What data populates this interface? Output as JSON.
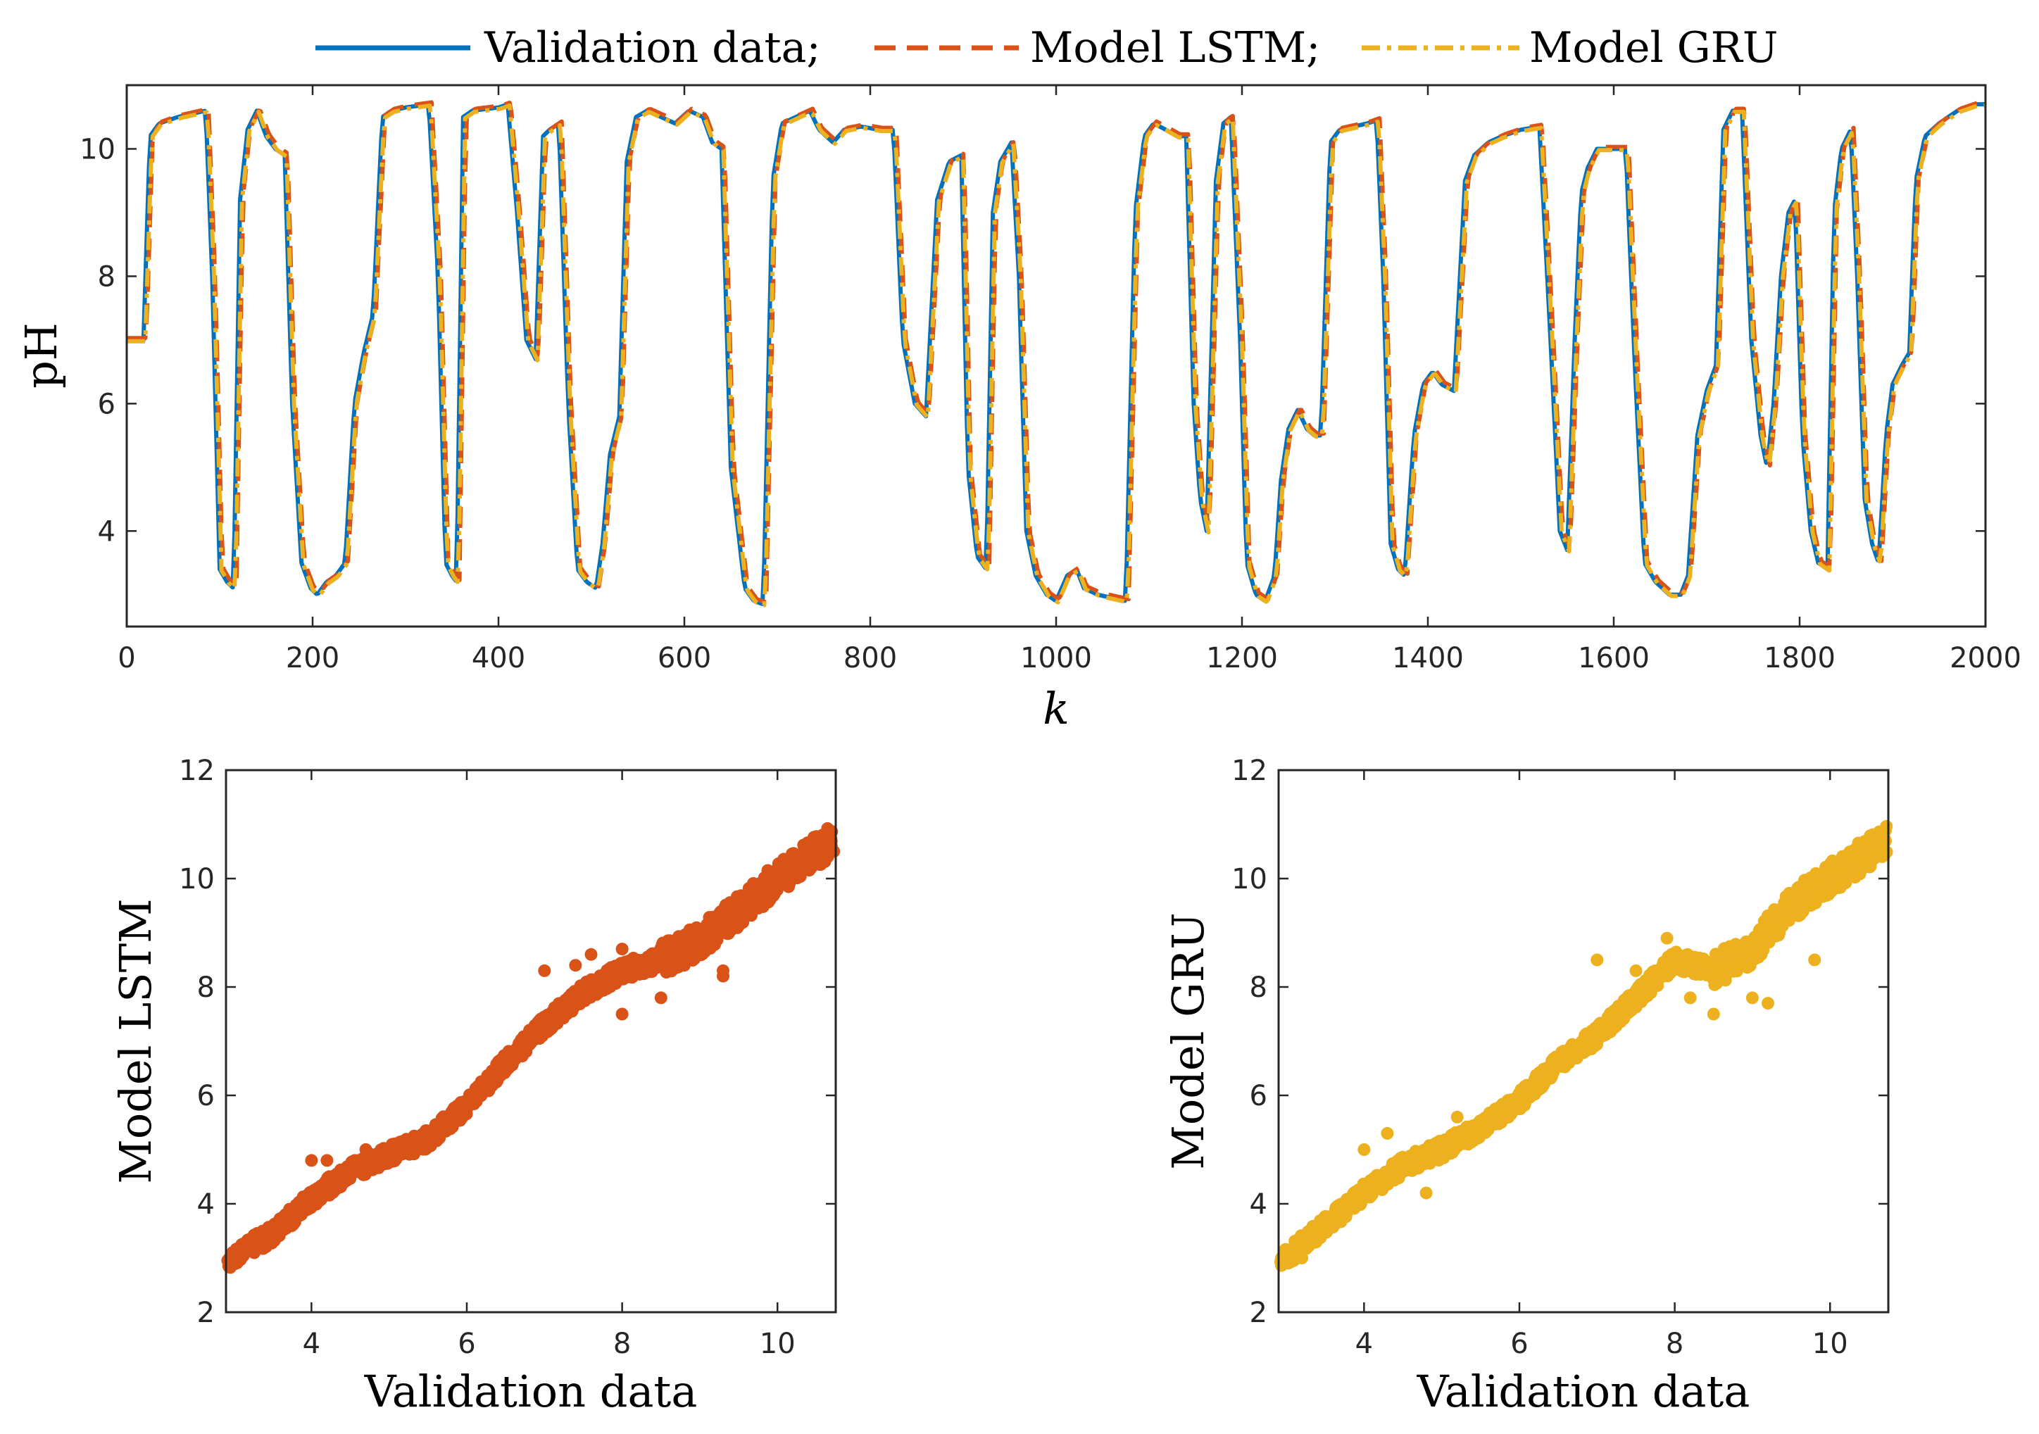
{
  "colors": {
    "validation": "#0072BD",
    "lstm": "#D95319",
    "gru": "#EDB120",
    "axis": "#262626",
    "background": "#FFFFFF"
  },
  "legend": {
    "validation_label": "Validation data;",
    "lstm_label": "Model LSTM;",
    "gru_label": "Model GRU"
  },
  "chart_data": [
    {
      "id": "time-series",
      "type": "line",
      "title": "",
      "xlabel": "k",
      "ylabel": "pH",
      "xlim": [
        0,
        2000
      ],
      "ylim": [
        2.5,
        11
      ],
      "xticks": [
        0,
        200,
        400,
        600,
        800,
        1000,
        1200,
        1400,
        1600,
        1800,
        2000
      ],
      "yticks": [
        4,
        6,
        8,
        10
      ],
      "grid": false,
      "legend_position": "top-center-outside",
      "validation_keypoints": [
        [
          0,
          7.0
        ],
        [
          18,
          7.0
        ],
        [
          25,
          10.2
        ],
        [
          35,
          10.4
        ],
        [
          55,
          10.5
        ],
        [
          70,
          10.55
        ],
        [
          85,
          10.6
        ],
        [
          92,
          8.0
        ],
        [
          100,
          3.4
        ],
        [
          108,
          3.2
        ],
        [
          115,
          3.1
        ],
        [
          122,
          9.2
        ],
        [
          130,
          10.3
        ],
        [
          140,
          10.6
        ],
        [
          150,
          10.2
        ],
        [
          160,
          10.0
        ],
        [
          170,
          9.9
        ],
        [
          178,
          6.0
        ],
        [
          188,
          3.5
        ],
        [
          198,
          3.1
        ],
        [
          205,
          3.0
        ],
        [
          215,
          3.2
        ],
        [
          225,
          3.3
        ],
        [
          235,
          3.5
        ],
        [
          245,
          6.0
        ],
        [
          255,
          6.8
        ],
        [
          265,
          7.4
        ],
        [
          275,
          10.5
        ],
        [
          285,
          10.6
        ],
        [
          300,
          10.65
        ],
        [
          325,
          10.7
        ],
        [
          335,
          8.0
        ],
        [
          343,
          3.5
        ],
        [
          350,
          3.3
        ],
        [
          355,
          3.2
        ],
        [
          362,
          10.5
        ],
        [
          372,
          10.6
        ],
        [
          400,
          10.65
        ],
        [
          410,
          10.7
        ],
        [
          420,
          9.0
        ],
        [
          430,
          7.0
        ],
        [
          440,
          6.7
        ],
        [
          448,
          10.2
        ],
        [
          455,
          10.3
        ],
        [
          465,
          10.4
        ],
        [
          475,
          6.0
        ],
        [
          485,
          3.4
        ],
        [
          495,
          3.2
        ],
        [
          505,
          3.1
        ],
        [
          512,
          3.8
        ],
        [
          520,
          5.2
        ],
        [
          530,
          5.8
        ],
        [
          538,
          9.8
        ],
        [
          548,
          10.5
        ],
        [
          560,
          10.6
        ],
        [
          575,
          10.5
        ],
        [
          590,
          10.4
        ],
        [
          605,
          10.6
        ],
        [
          620,
          10.5
        ],
        [
          630,
          10.1
        ],
        [
          640,
          10.0
        ],
        [
          650,
          5.0
        ],
        [
          665,
          3.1
        ],
        [
          675,
          2.9
        ],
        [
          685,
          2.85
        ],
        [
          695,
          9.5
        ],
        [
          705,
          10.4
        ],
        [
          720,
          10.5
        ],
        [
          735,
          10.6
        ],
        [
          745,
          10.3
        ],
        [
          760,
          10.1
        ],
        [
          772,
          10.3
        ],
        [
          790,
          10.35
        ],
        [
          810,
          10.3
        ],
        [
          825,
          10.3
        ],
        [
          835,
          7.0
        ],
        [
          848,
          6.0
        ],
        [
          860,
          5.8
        ],
        [
          872,
          9.2
        ],
        [
          885,
          9.8
        ],
        [
          898,
          9.9
        ],
        [
          905,
          5.0
        ],
        [
          915,
          3.6
        ],
        [
          925,
          3.4
        ],
        [
          932,
          9.0
        ],
        [
          940,
          9.8
        ],
        [
          952,
          10.1
        ],
        [
          960,
          8.0
        ],
        [
          968,
          4.0
        ],
        [
          978,
          3.3
        ],
        [
          990,
          3.0
        ],
        [
          1000,
          2.9
        ],
        [
          1012,
          3.3
        ],
        [
          1022,
          3.4
        ],
        [
          1030,
          3.1
        ],
        [
          1045,
          3.0
        ],
        [
          1060,
          2.95
        ],
        [
          1075,
          2.9
        ],
        [
          1085,
          9.0
        ],
        [
          1095,
          10.2
        ],
        [
          1105,
          10.4
        ],
        [
          1118,
          10.3
        ],
        [
          1130,
          10.2
        ],
        [
          1140,
          10.2
        ],
        [
          1148,
          6.0
        ],
        [
          1155,
          4.5
        ],
        [
          1162,
          4.0
        ],
        [
          1172,
          9.5
        ],
        [
          1180,
          10.4
        ],
        [
          1188,
          10.5
        ],
        [
          1198,
          7.0
        ],
        [
          1205,
          3.5
        ],
        [
          1215,
          3.0
        ],
        [
          1225,
          2.9
        ],
        [
          1235,
          3.3
        ],
        [
          1242,
          4.8
        ],
        [
          1250,
          5.6
        ],
        [
          1260,
          5.9
        ],
        [
          1270,
          5.6
        ],
        [
          1278,
          5.5
        ],
        [
          1285,
          5.5
        ],
        [
          1295,
          10.1
        ],
        [
          1305,
          10.3
        ],
        [
          1320,
          10.35
        ],
        [
          1335,
          10.4
        ],
        [
          1345,
          10.45
        ],
        [
          1352,
          8.0
        ],
        [
          1360,
          3.8
        ],
        [
          1368,
          3.4
        ],
        [
          1375,
          3.3
        ],
        [
          1385,
          5.5
        ],
        [
          1395,
          6.3
        ],
        [
          1405,
          6.5
        ],
        [
          1415,
          6.3
        ],
        [
          1428,
          6.2
        ],
        [
          1440,
          9.5
        ],
        [
          1450,
          9.9
        ],
        [
          1465,
          10.1
        ],
        [
          1480,
          10.2
        ],
        [
          1500,
          10.3
        ],
        [
          1520,
          10.35
        ],
        [
          1532,
          7.0
        ],
        [
          1542,
          4.0
        ],
        [
          1550,
          3.7
        ],
        [
          1558,
          7.0
        ],
        [
          1565,
          9.3
        ],
        [
          1572,
          9.7
        ],
        [
          1582,
          10.0
        ],
        [
          1600,
          10.0
        ],
        [
          1613,
          10.0
        ],
        [
          1623,
          6.5
        ],
        [
          1633,
          3.5
        ],
        [
          1645,
          3.2
        ],
        [
          1660,
          3.0
        ],
        [
          1672,
          3.0
        ],
        [
          1680,
          3.3
        ],
        [
          1690,
          5.5
        ],
        [
          1700,
          6.2
        ],
        [
          1710,
          6.6
        ],
        [
          1718,
          10.3
        ],
        [
          1728,
          10.6
        ],
        [
          1738,
          10.6
        ],
        [
          1748,
          7.0
        ],
        [
          1758,
          5.5
        ],
        [
          1765,
          5.0
        ],
        [
          1772,
          6.0
        ],
        [
          1780,
          8.0
        ],
        [
          1788,
          9.0
        ],
        [
          1795,
          9.2
        ],
        [
          1803,
          5.5
        ],
        [
          1812,
          4.0
        ],
        [
          1820,
          3.5
        ],
        [
          1830,
          3.4
        ],
        [
          1837,
          9.0
        ],
        [
          1845,
          10.0
        ],
        [
          1855,
          10.3
        ],
        [
          1862,
          8.0
        ],
        [
          1870,
          4.5
        ],
        [
          1878,
          3.8
        ],
        [
          1885,
          3.5
        ],
        [
          1893,
          5.5
        ],
        [
          1900,
          6.3
        ],
        [
          1910,
          6.6
        ],
        [
          1918,
          6.8
        ],
        [
          1925,
          9.5
        ],
        [
          1935,
          10.2
        ],
        [
          1950,
          10.4
        ],
        [
          1970,
          10.6
        ],
        [
          1990,
          10.7
        ],
        [
          2000,
          10.7
        ]
      ]
    },
    {
      "id": "scatter-lstm",
      "type": "scatter",
      "title": "",
      "xlabel": "Validation data",
      "ylabel": "Model LSTM",
      "xlim": [
        2.9,
        10.75
      ],
      "ylim": [
        2,
        12
      ],
      "xticks": [
        4,
        6,
        8,
        10
      ],
      "yticks": [
        2,
        4,
        6,
        8,
        10,
        12
      ],
      "color_key": "lstm",
      "trend": [
        [
          2.9,
          2.95
        ],
        [
          3.5,
          3.45
        ],
        [
          4.0,
          4.1
        ],
        [
          4.5,
          4.6
        ],
        [
          5.0,
          4.9
        ],
        [
          5.5,
          5.2
        ],
        [
          6.0,
          5.8
        ],
        [
          6.5,
          6.6
        ],
        [
          7.0,
          7.3
        ],
        [
          7.5,
          7.9
        ],
        [
          8.0,
          8.3
        ],
        [
          8.5,
          8.5
        ],
        [
          9.0,
          8.85
        ],
        [
          9.5,
          9.4
        ],
        [
          10.0,
          10.0
        ],
        [
          10.7,
          10.7
        ]
      ],
      "outliers": [
        [
          7.0,
          8.3
        ],
        [
          7.4,
          8.4
        ],
        [
          7.6,
          8.6
        ],
        [
          8.0,
          8.7
        ],
        [
          8.0,
          7.5
        ],
        [
          8.5,
          7.8
        ],
        [
          8.2,
          8.4
        ],
        [
          8.8,
          8.4
        ],
        [
          9.3,
          8.3
        ],
        [
          9.3,
          8.2
        ],
        [
          4.0,
          4.8
        ],
        [
          4.2,
          4.8
        ],
        [
          4.7,
          5.0
        ]
      ]
    },
    {
      "id": "scatter-gru",
      "type": "scatter",
      "title": "",
      "xlabel": "Validation data",
      "ylabel": "Model GRU",
      "xlim": [
        2.9,
        10.75
      ],
      "ylim": [
        2,
        12
      ],
      "xticks": [
        4,
        6,
        8,
        10
      ],
      "yticks": [
        2,
        4,
        6,
        8,
        10,
        12
      ],
      "color_key": "gru",
      "trend": [
        [
          2.9,
          2.9
        ],
        [
          3.5,
          3.6
        ],
        [
          4.0,
          4.2
        ],
        [
          4.5,
          4.7
        ],
        [
          5.0,
          5.0
        ],
        [
          5.5,
          5.4
        ],
        [
          6.0,
          5.9
        ],
        [
          6.5,
          6.6
        ],
        [
          7.0,
          7.1
        ],
        [
          7.5,
          7.8
        ],
        [
          8.0,
          8.5
        ],
        [
          8.5,
          8.3
        ],
        [
          9.0,
          8.7
        ],
        [
          9.5,
          9.5
        ],
        [
          10.0,
          10.0
        ],
        [
          10.7,
          10.7
        ]
      ],
      "outliers": [
        [
          7.0,
          8.5
        ],
        [
          7.5,
          8.3
        ],
        [
          7.9,
          8.9
        ],
        [
          8.2,
          7.8
        ],
        [
          8.5,
          7.5
        ],
        [
          9.0,
          7.8
        ],
        [
          9.2,
          7.7
        ],
        [
          9.8,
          8.5
        ],
        [
          4.0,
          5.0
        ],
        [
          4.3,
          5.3
        ],
        [
          4.8,
          4.2
        ],
        [
          5.2,
          5.6
        ],
        [
          3.2,
          3.0
        ]
      ]
    }
  ]
}
